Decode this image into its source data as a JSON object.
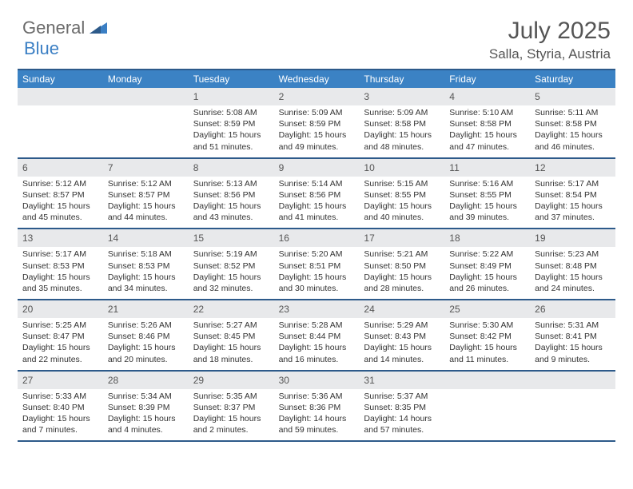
{
  "logo": {
    "text1": "General",
    "text2": "Blue"
  },
  "title": "July 2025",
  "location": "Salla, Styria, Austria",
  "weekdays": [
    "Sunday",
    "Monday",
    "Tuesday",
    "Wednesday",
    "Thursday",
    "Friday",
    "Saturday"
  ],
  "colors": {
    "header_bar": "#3b82c4",
    "header_border": "#2d5a8a",
    "daynum_bg": "#e8e9eb",
    "logo_gray": "#6b6b6b",
    "logo_blue": "#3b7fc4"
  },
  "weeks": [
    [
      {
        "empty": true
      },
      {
        "empty": true
      },
      {
        "num": "1",
        "sunrise": "Sunrise: 5:08 AM",
        "sunset": "Sunset: 8:59 PM",
        "daylight": "Daylight: 15 hours and 51 minutes."
      },
      {
        "num": "2",
        "sunrise": "Sunrise: 5:09 AM",
        "sunset": "Sunset: 8:59 PM",
        "daylight": "Daylight: 15 hours and 49 minutes."
      },
      {
        "num": "3",
        "sunrise": "Sunrise: 5:09 AM",
        "sunset": "Sunset: 8:58 PM",
        "daylight": "Daylight: 15 hours and 48 minutes."
      },
      {
        "num": "4",
        "sunrise": "Sunrise: 5:10 AM",
        "sunset": "Sunset: 8:58 PM",
        "daylight": "Daylight: 15 hours and 47 minutes."
      },
      {
        "num": "5",
        "sunrise": "Sunrise: 5:11 AM",
        "sunset": "Sunset: 8:58 PM",
        "daylight": "Daylight: 15 hours and 46 minutes."
      }
    ],
    [
      {
        "num": "6",
        "sunrise": "Sunrise: 5:12 AM",
        "sunset": "Sunset: 8:57 PM",
        "daylight": "Daylight: 15 hours and 45 minutes."
      },
      {
        "num": "7",
        "sunrise": "Sunrise: 5:12 AM",
        "sunset": "Sunset: 8:57 PM",
        "daylight": "Daylight: 15 hours and 44 minutes."
      },
      {
        "num": "8",
        "sunrise": "Sunrise: 5:13 AM",
        "sunset": "Sunset: 8:56 PM",
        "daylight": "Daylight: 15 hours and 43 minutes."
      },
      {
        "num": "9",
        "sunrise": "Sunrise: 5:14 AM",
        "sunset": "Sunset: 8:56 PM",
        "daylight": "Daylight: 15 hours and 41 minutes."
      },
      {
        "num": "10",
        "sunrise": "Sunrise: 5:15 AM",
        "sunset": "Sunset: 8:55 PM",
        "daylight": "Daylight: 15 hours and 40 minutes."
      },
      {
        "num": "11",
        "sunrise": "Sunrise: 5:16 AM",
        "sunset": "Sunset: 8:55 PM",
        "daylight": "Daylight: 15 hours and 39 minutes."
      },
      {
        "num": "12",
        "sunrise": "Sunrise: 5:17 AM",
        "sunset": "Sunset: 8:54 PM",
        "daylight": "Daylight: 15 hours and 37 minutes."
      }
    ],
    [
      {
        "num": "13",
        "sunrise": "Sunrise: 5:17 AM",
        "sunset": "Sunset: 8:53 PM",
        "daylight": "Daylight: 15 hours and 35 minutes."
      },
      {
        "num": "14",
        "sunrise": "Sunrise: 5:18 AM",
        "sunset": "Sunset: 8:53 PM",
        "daylight": "Daylight: 15 hours and 34 minutes."
      },
      {
        "num": "15",
        "sunrise": "Sunrise: 5:19 AM",
        "sunset": "Sunset: 8:52 PM",
        "daylight": "Daylight: 15 hours and 32 minutes."
      },
      {
        "num": "16",
        "sunrise": "Sunrise: 5:20 AM",
        "sunset": "Sunset: 8:51 PM",
        "daylight": "Daylight: 15 hours and 30 minutes."
      },
      {
        "num": "17",
        "sunrise": "Sunrise: 5:21 AM",
        "sunset": "Sunset: 8:50 PM",
        "daylight": "Daylight: 15 hours and 28 minutes."
      },
      {
        "num": "18",
        "sunrise": "Sunrise: 5:22 AM",
        "sunset": "Sunset: 8:49 PM",
        "daylight": "Daylight: 15 hours and 26 minutes."
      },
      {
        "num": "19",
        "sunrise": "Sunrise: 5:23 AM",
        "sunset": "Sunset: 8:48 PM",
        "daylight": "Daylight: 15 hours and 24 minutes."
      }
    ],
    [
      {
        "num": "20",
        "sunrise": "Sunrise: 5:25 AM",
        "sunset": "Sunset: 8:47 PM",
        "daylight": "Daylight: 15 hours and 22 minutes."
      },
      {
        "num": "21",
        "sunrise": "Sunrise: 5:26 AM",
        "sunset": "Sunset: 8:46 PM",
        "daylight": "Daylight: 15 hours and 20 minutes."
      },
      {
        "num": "22",
        "sunrise": "Sunrise: 5:27 AM",
        "sunset": "Sunset: 8:45 PM",
        "daylight": "Daylight: 15 hours and 18 minutes."
      },
      {
        "num": "23",
        "sunrise": "Sunrise: 5:28 AM",
        "sunset": "Sunset: 8:44 PM",
        "daylight": "Daylight: 15 hours and 16 minutes."
      },
      {
        "num": "24",
        "sunrise": "Sunrise: 5:29 AM",
        "sunset": "Sunset: 8:43 PM",
        "daylight": "Daylight: 15 hours and 14 minutes."
      },
      {
        "num": "25",
        "sunrise": "Sunrise: 5:30 AM",
        "sunset": "Sunset: 8:42 PM",
        "daylight": "Daylight: 15 hours and 11 minutes."
      },
      {
        "num": "26",
        "sunrise": "Sunrise: 5:31 AM",
        "sunset": "Sunset: 8:41 PM",
        "daylight": "Daylight: 15 hours and 9 minutes."
      }
    ],
    [
      {
        "num": "27",
        "sunrise": "Sunrise: 5:33 AM",
        "sunset": "Sunset: 8:40 PM",
        "daylight": "Daylight: 15 hours and 7 minutes."
      },
      {
        "num": "28",
        "sunrise": "Sunrise: 5:34 AM",
        "sunset": "Sunset: 8:39 PM",
        "daylight": "Daylight: 15 hours and 4 minutes."
      },
      {
        "num": "29",
        "sunrise": "Sunrise: 5:35 AM",
        "sunset": "Sunset: 8:37 PM",
        "daylight": "Daylight: 15 hours and 2 minutes."
      },
      {
        "num": "30",
        "sunrise": "Sunrise: 5:36 AM",
        "sunset": "Sunset: 8:36 PM",
        "daylight": "Daylight: 14 hours and 59 minutes."
      },
      {
        "num": "31",
        "sunrise": "Sunrise: 5:37 AM",
        "sunset": "Sunset: 8:35 PM",
        "daylight": "Daylight: 14 hours and 57 minutes."
      },
      {
        "empty": true
      },
      {
        "empty": true
      }
    ]
  ]
}
